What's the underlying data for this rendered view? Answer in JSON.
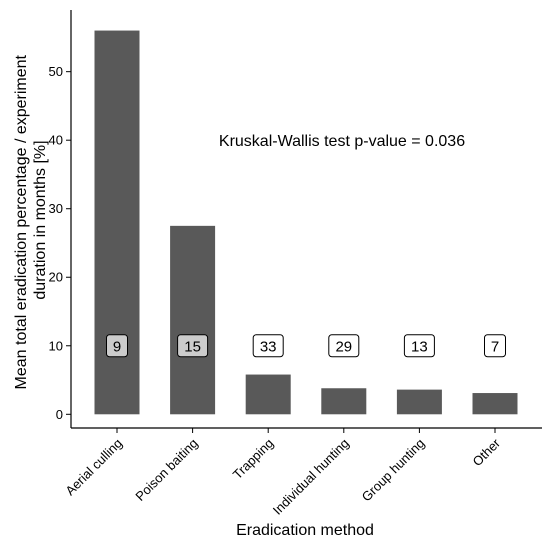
{
  "chart_data": {
    "type": "bar",
    "categories": [
      "Aerial culling",
      "Poison baiting",
      "Trapping",
      "Individual hunting",
      "Group hunting",
      "Other"
    ],
    "values": [
      56,
      27.5,
      5.8,
      3.8,
      3.6,
      3.1
    ],
    "counts": [
      "9",
      "15",
      "33",
      "29",
      "13",
      "7"
    ],
    "count_label_fill": [
      "#cccccc",
      "#cccccc",
      "#ffffff",
      "#ffffff",
      "#ffffff",
      "#ffffff"
    ],
    "count_label_y": 10,
    "xlabel": "Eradication method",
    "ylabel_lines": [
      "Mean total eradication percentage / experiment",
      "duration in months [%]"
    ],
    "y_ticks": [
      0,
      10,
      20,
      30,
      40,
      50
    ],
    "ylim": [
      -2,
      59
    ],
    "annotation": "Kruskal-Wallis test p-value = 0.036",
    "bar_color": "#595959",
    "grid": false
  }
}
